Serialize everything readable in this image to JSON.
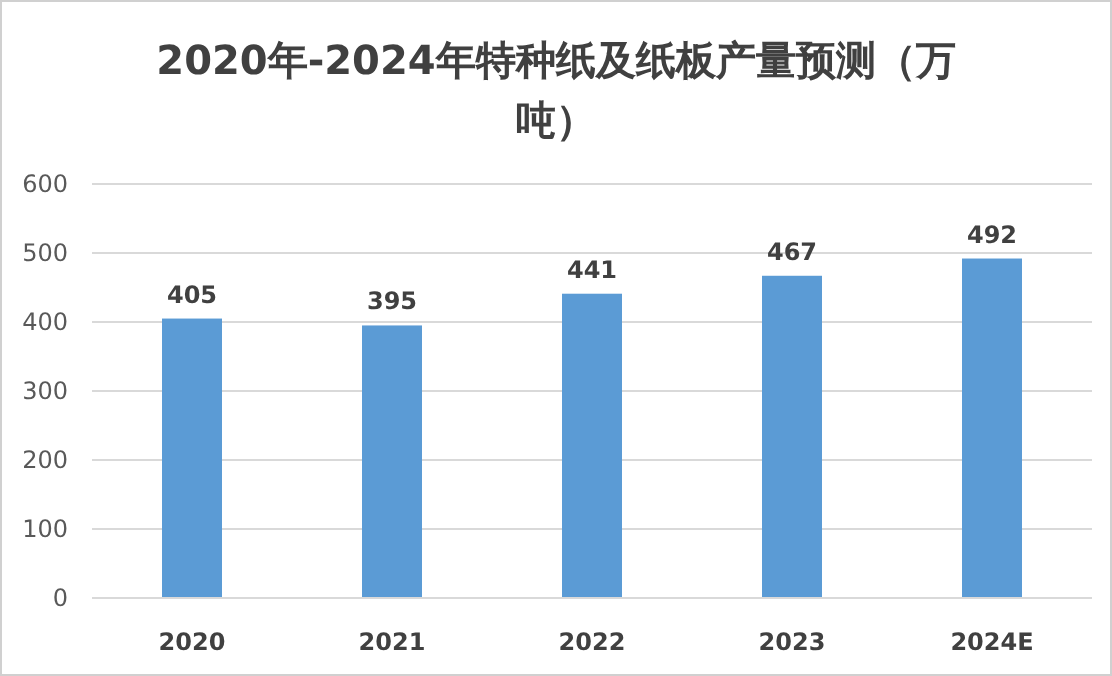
{
  "chart_data": {
    "type": "bar",
    "title": "2020年-2024年特种纸及纸板产量预测（万吨）",
    "categories": [
      "2020",
      "2021",
      "2022",
      "2023",
      "2024E"
    ],
    "values": [
      405,
      395,
      441,
      467,
      492
    ],
    "color": "#5b9bd5",
    "ylim": [
      0,
      600
    ],
    "yticks": [
      0,
      100,
      200,
      300,
      400,
      500,
      600
    ],
    "grid": "y",
    "data_labels": true
  }
}
